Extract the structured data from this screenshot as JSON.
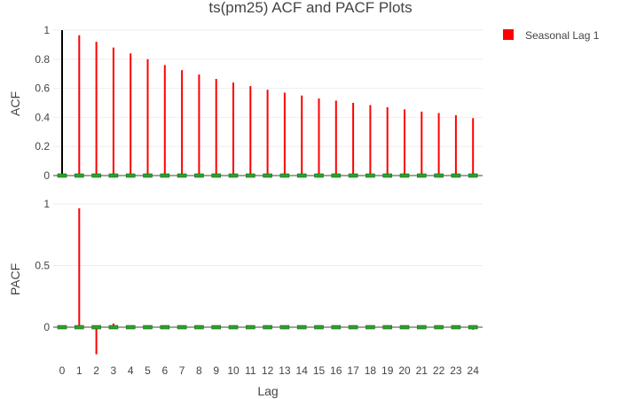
{
  "chart_data": {
    "type": "bar",
    "title": "ts(pm25) ACF and PACF Plots",
    "xlabel": "Lag",
    "x": [
      0,
      1,
      2,
      3,
      4,
      5,
      6,
      7,
      8,
      9,
      10,
      11,
      12,
      13,
      14,
      15,
      16,
      17,
      18,
      19,
      20,
      21,
      22,
      23,
      24
    ],
    "legend": {
      "entries": [
        "Seasonal Lag 1"
      ],
      "position": "top-right"
    },
    "colors": {
      "bars": "#ff0000",
      "lag0": "#000000",
      "ci_marker": "#2ca02c",
      "zero_line": "#444444",
      "grid": "#eeeeee"
    },
    "panels": [
      {
        "name": "acf",
        "ylabel": "ACF",
        "ylim": [
          0,
          1.0
        ],
        "yticks": [
          0,
          0.2,
          0.4,
          0.6,
          0.8,
          1
        ],
        "ytick_labels": [
          "0",
          "0.2",
          "0.4",
          "0.6",
          "0.8",
          "1"
        ],
        "values": [
          1.0,
          0.965,
          0.92,
          0.88,
          0.84,
          0.8,
          0.76,
          0.725,
          0.695,
          0.665,
          0.64,
          0.615,
          0.59,
          0.57,
          0.55,
          0.53,
          0.515,
          0.5,
          0.485,
          0.47,
          0.455,
          0.44,
          0.43,
          0.415,
          0.395
        ]
      },
      {
        "name": "pacf",
        "ylabel": "PACF",
        "ylim": [
          -0.23,
          1.0
        ],
        "yticks": [
          0,
          0.5,
          1
        ],
        "ytick_labels": [
          "0",
          "0.5",
          "1"
        ],
        "values": [
          null,
          0.965,
          -0.22,
          0.03,
          0.005,
          0.0,
          0.003,
          0.0,
          0.008,
          0.0,
          0.004,
          0.0,
          0.0,
          0.0,
          0.006,
          0.0,
          0.0,
          0.002,
          0.0,
          0.0,
          0.0,
          0.0,
          0.003,
          0.0,
          -0.02
        ]
      }
    ]
  }
}
